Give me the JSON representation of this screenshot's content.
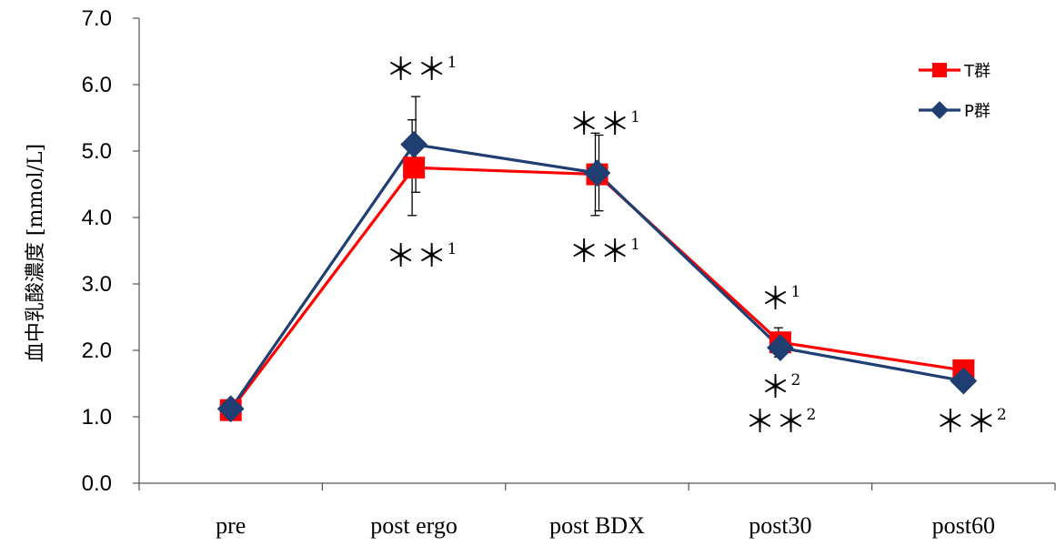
{
  "chart_data": {
    "type": "line",
    "categories": [
      "pre",
      "post ergo",
      "post BDX",
      "post30",
      "post60"
    ],
    "ylabel": "血中乳酸濃度 [mmol/L]",
    "xlabel": "",
    "ylim": [
      0,
      7
    ],
    "yticks": [
      "0.0",
      "1.0",
      "2.0",
      "3.0",
      "4.0",
      "5.0",
      "6.0",
      "7.0"
    ],
    "grid": false,
    "legend_position": "top-right",
    "series": [
      {
        "name": "T群",
        "color": "#ff0000",
        "marker": "square",
        "values": [
          1.1,
          4.75,
          4.65,
          2.12,
          1.7
        ],
        "error": [
          null,
          0.72,
          0.62,
          0.22,
          null
        ]
      },
      {
        "name": "P群",
        "color": "#1f3f73",
        "marker": "diamond",
        "values": [
          1.12,
          5.1,
          4.67,
          2.04,
          1.54
        ],
        "error": [
          null,
          0.72,
          0.57,
          0.1,
          null
        ]
      }
    ],
    "annotations": [
      {
        "category": "post ergo",
        "position": "above",
        "mark": "＊＊",
        "sup": "1"
      },
      {
        "category": "post ergo",
        "position": "below",
        "mark": "＊＊",
        "sup": "1"
      },
      {
        "category": "post BDX",
        "position": "above",
        "mark": "＊＊",
        "sup": "1"
      },
      {
        "category": "post BDX",
        "position": "below",
        "mark": "＊＊",
        "sup": "1"
      },
      {
        "category": "post30",
        "position": "above",
        "mark": "＊",
        "sup": "1"
      },
      {
        "category": "post30",
        "position": "below",
        "mark": "＊",
        "sup": "2"
      },
      {
        "category": "post30",
        "position": "below2",
        "mark": "＊＊",
        "sup": "2"
      },
      {
        "category": "post60",
        "position": "below",
        "mark": "＊＊",
        "sup": "2"
      }
    ]
  }
}
